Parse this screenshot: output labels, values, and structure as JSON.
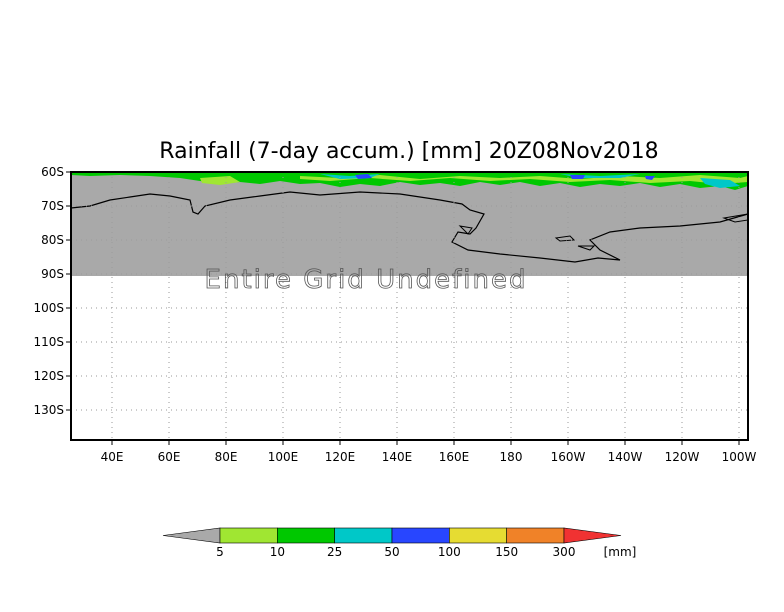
{
  "title": "Rainfall (7-day accum.) [mm] 20Z08Nov2018",
  "overlay_text": "Entire Grid Undefined",
  "map": {
    "lat_labels": [
      "60S",
      "70S",
      "80S",
      "90S",
      "100S",
      "110S",
      "120S",
      "130S"
    ],
    "lon_labels": [
      "40E",
      "60E",
      "80E",
      "100E",
      "120E",
      "140E",
      "160E",
      "180",
      "160W",
      "140W",
      "120W",
      "100W"
    ],
    "land_color": "#a9a9a9",
    "grid": "dotted"
  },
  "colorbar": {
    "unit": "[mm]",
    "labels": [
      "5",
      "10",
      "25",
      "50",
      "100",
      "150",
      "300"
    ],
    "colors": [
      "#a0e632",
      "#00c800",
      "#00c8c8",
      "#2846ff",
      "#e6dc32",
      "#f08228",
      "#f03232"
    ],
    "under_color": "#a9a9a9"
  },
  "chart_data": {
    "type": "heatmap",
    "title": "Rainfall (7-day accum.) [mm] 20Z08Nov2018",
    "x_ticks": [
      "40E",
      "60E",
      "80E",
      "100E",
      "120E",
      "140E",
      "160E",
      "180",
      "160W",
      "140W",
      "120W",
      "100W"
    ],
    "y_ticks": [
      "60S",
      "70S",
      "80S",
      "90S",
      "100S",
      "110S",
      "120S",
      "130S"
    ],
    "levels": [
      5,
      10,
      25,
      50,
      100,
      150,
      300
    ],
    "unit": "[mm]",
    "note": "Entire Grid Undefined"
  }
}
